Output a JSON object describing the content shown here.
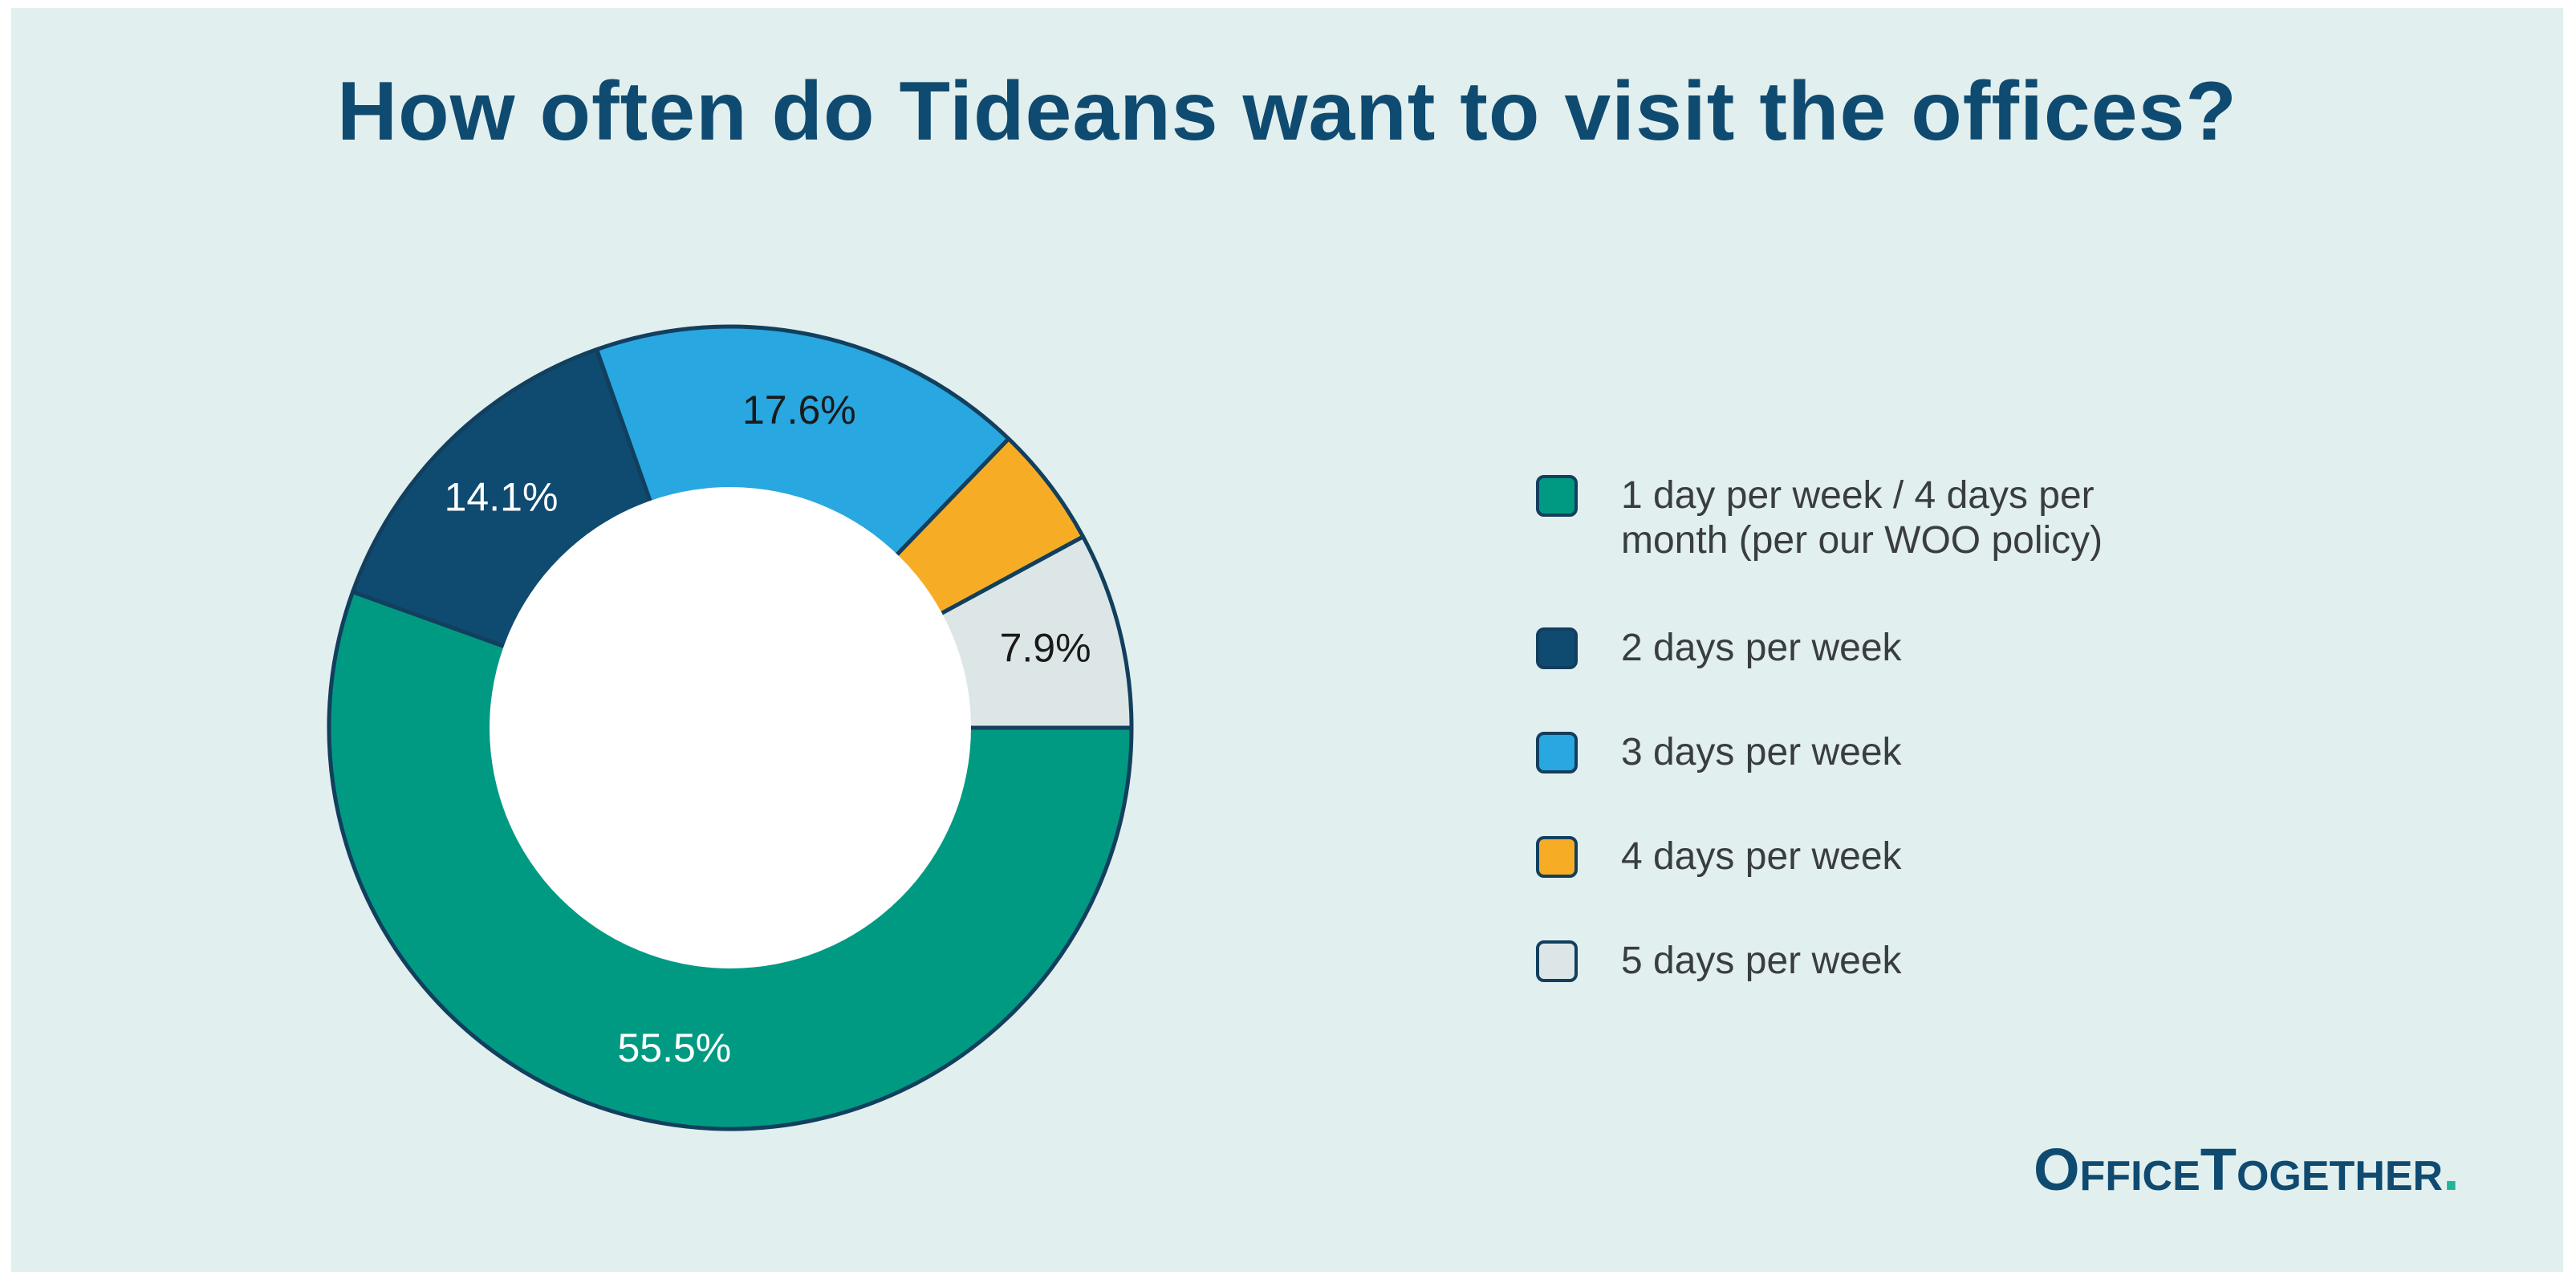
{
  "colors": {
    "background": "#e1efee",
    "title": "#0f4a70",
    "outline": "#123f5e",
    "brand_dot": "#23b39a"
  },
  "brand": {
    "name": "OfficeTogether",
    "dot": "."
  },
  "chart_data": {
    "type": "pie",
    "variant": "donut",
    "title": "How often do Tideans want to visit the offices?",
    "legend_position": "right",
    "categories": [
      "1 day per week / 4 days per month (per our WOO policy)",
      "2 days per week",
      "3 days per week",
      "4 days per week",
      "5 days per week"
    ],
    "values": [
      55.5,
      14.1,
      17.6,
      4.9,
      7.9
    ],
    "data_labels": [
      "55.5%",
      "14.1%",
      "17.6%",
      "",
      "7.9%"
    ],
    "colors": [
      "#009a82",
      "#0f4a70",
      "#28a7e0",
      "#f6ad25",
      "#dde6e6"
    ],
    "label_colors": [
      "#ffffff",
      "#ffffff",
      "#1a1a1a",
      "#1a1a1a",
      "#1a1a1a"
    ]
  }
}
